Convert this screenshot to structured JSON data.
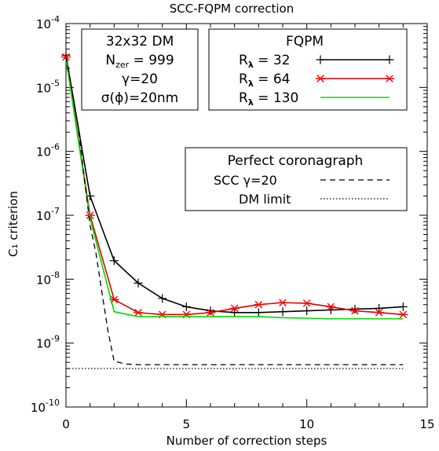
{
  "chart_data": {
    "type": "line",
    "title": "SCC-FQPM correction",
    "xlabel": "Number of correction steps",
    "ylabel": "C₁ criterion",
    "xlim": [
      0,
      15
    ],
    "ylim": [
      1e-10,
      0.0001
    ],
    "yscale": "log",
    "x_ticks": [
      0,
      5,
      10,
      15
    ],
    "x_tick_labels": [
      "0",
      "5",
      "10",
      "15"
    ],
    "y_ticks": [
      1e-10,
      1e-09,
      1e-08,
      1e-07,
      1e-06,
      1e-05,
      0.0001
    ],
    "y_tick_labels": [
      {
        "base": "10",
        "exp": "-10"
      },
      {
        "base": "10",
        "exp": "-9"
      },
      {
        "base": "10",
        "exp": "-8"
      },
      {
        "base": "10",
        "exp": "-7"
      },
      {
        "base": "10",
        "exp": "-6"
      },
      {
        "base": "10",
        "exp": "-5"
      },
      {
        "base": "10",
        "exp": "-4"
      }
    ],
    "grid": false,
    "info_box": {
      "line1": "32x32 DM",
      "line2_prefix": "N",
      "line2_sub": "zer",
      "line2_suffix": " = 999",
      "line3": "γ=20",
      "line4": "σ(ϕ)=20nm"
    },
    "legend_fqpm": {
      "title": "FQPM",
      "entries": [
        {
          "prefix": "R",
          "sub": "λ",
          "value": " = 32"
        },
        {
          "prefix": "R",
          "sub": "λ",
          "value": " = 64"
        },
        {
          "prefix": "R",
          "sub": "λ",
          "value": " = 130"
        }
      ]
    },
    "legend_perfect": {
      "title": "Perfect coronagraph",
      "entries": [
        "SCC   γ=20",
        "DM limit"
      ]
    },
    "series": [
      {
        "name": "Rλ = 32",
        "color": "#000000",
        "marker": "plus",
        "x": [
          0,
          1,
          2,
          3,
          4,
          5,
          6,
          7,
          8,
          9,
          10,
          11,
          12,
          13,
          14
        ],
        "y": [
          3.2e-05,
          2e-07,
          1.95e-08,
          8.7e-09,
          5e-09,
          3.7e-09,
          3.2e-09,
          3e-09,
          3e-09,
          3.1e-09,
          3.2e-09,
          3.3e-09,
          3.4e-09,
          3.5e-09,
          3.7e-09
        ]
      },
      {
        "name": "Rλ = 64",
        "color": "#e00000",
        "marker_color": "#ff0000",
        "marker": "asterisk",
        "x": [
          0,
          1,
          2,
          3,
          4,
          5,
          6,
          7,
          8,
          9,
          10,
          11,
          12,
          13,
          14
        ],
        "y": [
          3e-05,
          1e-07,
          4.8e-09,
          3e-09,
          2.8e-09,
          2.8e-09,
          3e-09,
          3.5e-09,
          4e-09,
          4.3e-09,
          4.2e-09,
          3.7e-09,
          3.2e-09,
          3e-09,
          2.8e-09
        ]
      },
      {
        "name": "Rλ = 130",
        "color": "#00dd00",
        "marker": "none",
        "x": [
          0,
          1,
          2,
          3,
          4,
          5,
          6,
          7,
          8,
          9,
          10,
          11,
          12,
          13,
          14
        ],
        "y": [
          2.8e-05,
          9e-08,
          3.1e-09,
          2.6e-09,
          2.6e-09,
          2.6e-09,
          2.6e-09,
          2.6e-09,
          2.6e-09,
          2.5e-09,
          2.45e-09,
          2.4e-09,
          2.4e-09,
          2.4e-09,
          2.4e-09
        ]
      },
      {
        "name": "SCC γ=20",
        "color": "#000000",
        "dash": "dashed",
        "x": [
          0,
          0.25,
          0.5,
          0.75,
          1,
          1.25,
          1.5,
          1.75,
          2,
          2.5,
          3,
          4,
          5,
          6,
          7,
          8,
          9,
          10,
          11,
          12,
          13,
          14
        ],
        "y": [
          3e-05,
          9e-06,
          2.5e-06,
          4.2e-07,
          7e-08,
          2.5e-08,
          6e-09,
          1.5e-09,
          5.2e-10,
          4.7e-10,
          4.6e-10,
          4.6e-10,
          4.6e-10,
          4.6e-10,
          4.6e-10,
          4.6e-10,
          4.6e-10,
          4.6e-10,
          4.6e-10,
          4.6e-10,
          4.6e-10,
          4.6e-10
        ]
      },
      {
        "name": "DM limit",
        "color": "#000000",
        "dash": "dotted",
        "x": [
          0,
          14
        ],
        "y": [
          4e-10,
          4e-10
        ]
      }
    ]
  }
}
